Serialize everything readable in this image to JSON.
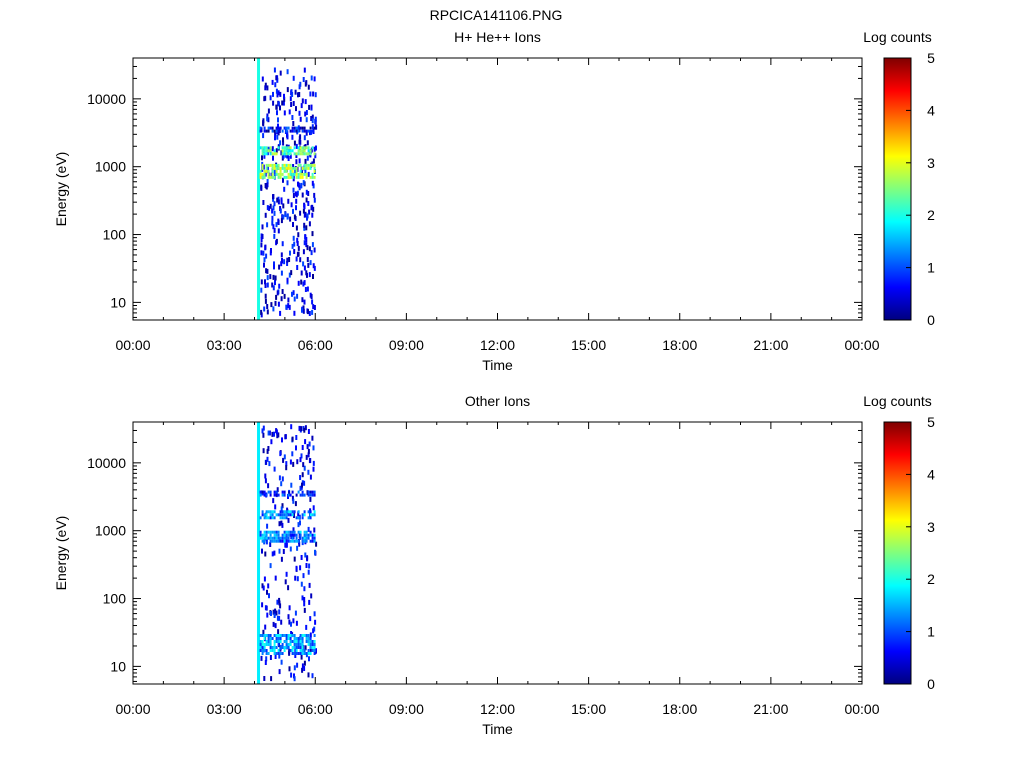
{
  "page": {
    "title": "RPCICA141106.PNG"
  },
  "colors": {
    "background": "#ffffff",
    "axis": "#000000",
    "colormap": [
      "#00007f",
      "#0000ff",
      "#007fff",
      "#00ffff",
      "#7fff7f",
      "#ffff00",
      "#ff7f00",
      "#ff0000",
      "#7f0000"
    ]
  },
  "chart_data": [
    {
      "type": "heatmap",
      "title": "H+ He++ Ions",
      "xlabel": "Time",
      "ylabel": "Energy (eV)",
      "x_ticks": [
        "00:00",
        "03:00",
        "06:00",
        "09:00",
        "12:00",
        "15:00",
        "18:00",
        "21:00",
        "00:00"
      ],
      "x_range_hours": [
        0,
        24
      ],
      "y_scale": "log",
      "y_ticks": [
        10,
        100,
        1000,
        10000
      ],
      "y_tick_labels": [
        "10",
        "100",
        "1000",
        "10000"
      ],
      "y_range": [
        5.5,
        40000
      ],
      "colorbar": {
        "label": "Log counts",
        "range": [
          0,
          5
        ],
        "ticks": [
          "0",
          "1",
          "2",
          "3",
          "4",
          "5"
        ]
      },
      "data_extent": {
        "time_start": "04:05",
        "time_end": "06:00",
        "energy_min_eV": 7,
        "energy_max_eV": 30000
      },
      "bands": [
        {
          "time_start": "04:05",
          "time_end": "04:10",
          "energy_min_eV": 5.5,
          "energy_max_eV": 40000,
          "log_counts": 2.0
        },
        {
          "time_start": "04:10",
          "time_end": "06:00",
          "energy_min_eV": 1500,
          "energy_max_eV": 2000,
          "log_counts": 2.3
        },
        {
          "time_start": "04:10",
          "time_end": "06:00",
          "energy_min_eV": 700,
          "energy_max_eV": 1100,
          "log_counts": 2.6
        },
        {
          "time_start": "04:10",
          "time_end": "06:00",
          "energy_min_eV": 3200,
          "energy_max_eV": 3900,
          "log_counts": 0.6
        }
      ]
    },
    {
      "type": "heatmap",
      "title": "Other Ions",
      "xlabel": "Time",
      "ylabel": "Energy (eV)",
      "x_ticks": [
        "00:00",
        "03:00",
        "06:00",
        "09:00",
        "12:00",
        "15:00",
        "18:00",
        "21:00",
        "00:00"
      ],
      "x_range_hours": [
        0,
        24
      ],
      "y_scale": "log",
      "y_ticks": [
        10,
        100,
        1000,
        10000
      ],
      "y_tick_labels": [
        "10",
        "100",
        "1000",
        "10000"
      ],
      "y_range": [
        5.5,
        40000
      ],
      "colorbar": {
        "label": "Log counts",
        "range": [
          0,
          5
        ],
        "ticks": [
          "0",
          "1",
          "2",
          "3",
          "4",
          "5"
        ]
      },
      "data_extent": {
        "time_start": "04:05",
        "time_end": "06:00",
        "energy_min_eV": 7,
        "energy_max_eV": 40000
      },
      "bands": [
        {
          "time_start": "04:05",
          "time_end": "04:10",
          "energy_min_eV": 5.5,
          "energy_max_eV": 40000,
          "log_counts": 1.8
        },
        {
          "time_start": "04:10",
          "time_end": "06:00",
          "energy_min_eV": 3200,
          "energy_max_eV": 3900,
          "log_counts": 0.8
        },
        {
          "time_start": "04:10",
          "time_end": "06:00",
          "energy_min_eV": 1500,
          "energy_max_eV": 2000,
          "log_counts": 1.3
        },
        {
          "time_start": "04:10",
          "time_end": "06:00",
          "energy_min_eV": 700,
          "energy_max_eV": 1000,
          "log_counts": 1.2
        },
        {
          "time_start": "04:10",
          "time_end": "06:00",
          "energy_min_eV": 15,
          "energy_max_eV": 30,
          "log_counts": 1.4
        }
      ]
    }
  ]
}
